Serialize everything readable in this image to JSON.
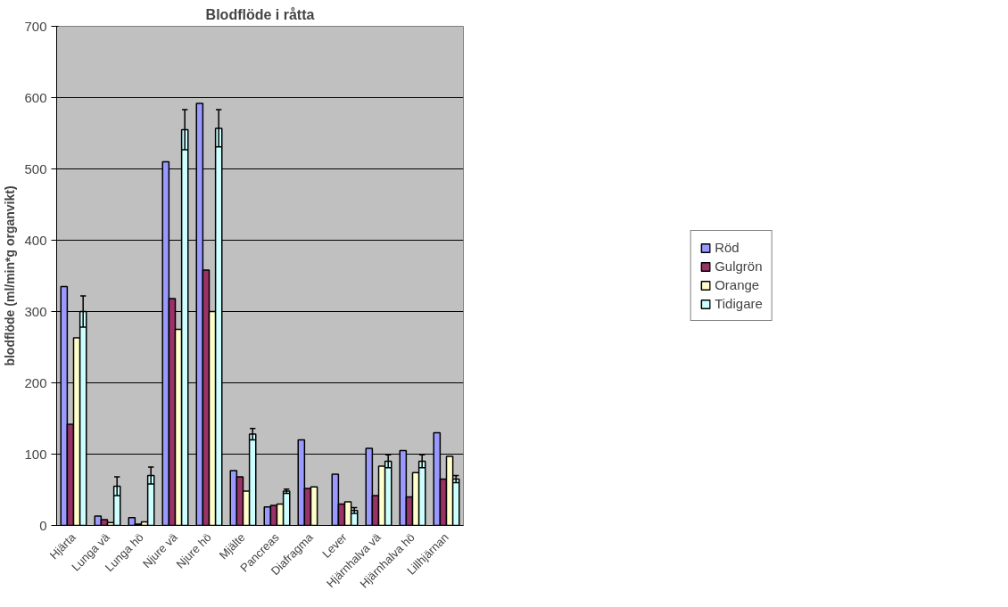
{
  "chart_data": {
    "type": "bar",
    "title": "Blodflöde i råtta",
    "ylabel": "blodflöde (ml/min*g organvikt)",
    "categories": [
      "Hjärta",
      "Lunga vä",
      "Lunga hö",
      "Njure vä",
      "Njure hö",
      "Mjälte",
      "Pancreas",
      "Diafragma",
      "Lever",
      "Hjärnhalva vä",
      "Hjärnhalva hö",
      "Lillhjärnan"
    ],
    "series": [
      {
        "name": "Röd",
        "color": "#9999ff",
        "values": [
          335,
          13,
          11,
          510,
          592,
          77,
          26,
          120,
          72,
          108,
          105,
          130
        ]
      },
      {
        "name": "Gulgrön",
        "color": "#993366",
        "values": [
          142,
          8,
          2,
          318,
          358,
          68,
          28,
          52,
          30,
          42,
          40,
          65
        ]
      },
      {
        "name": "Orange",
        "color": "#ffffcc",
        "values": [
          263,
          4,
          5,
          275,
          300,
          48,
          30,
          54,
          33,
          83,
          74,
          97
        ]
      },
      {
        "name": "Tidigare",
        "color": "#ccffff",
        "values": [
          300,
          55,
          70,
          555,
          557,
          128,
          48,
          null,
          21,
          90,
          90,
          65
        ],
        "errors": [
          22,
          13,
          12,
          28,
          26,
          8,
          3,
          null,
          4,
          9,
          9,
          5
        ]
      }
    ],
    "ylim": [
      0,
      700
    ],
    "yticks": [
      0,
      100,
      200,
      300,
      400,
      500,
      600,
      700
    ],
    "grid": "y",
    "legend": "right"
  }
}
